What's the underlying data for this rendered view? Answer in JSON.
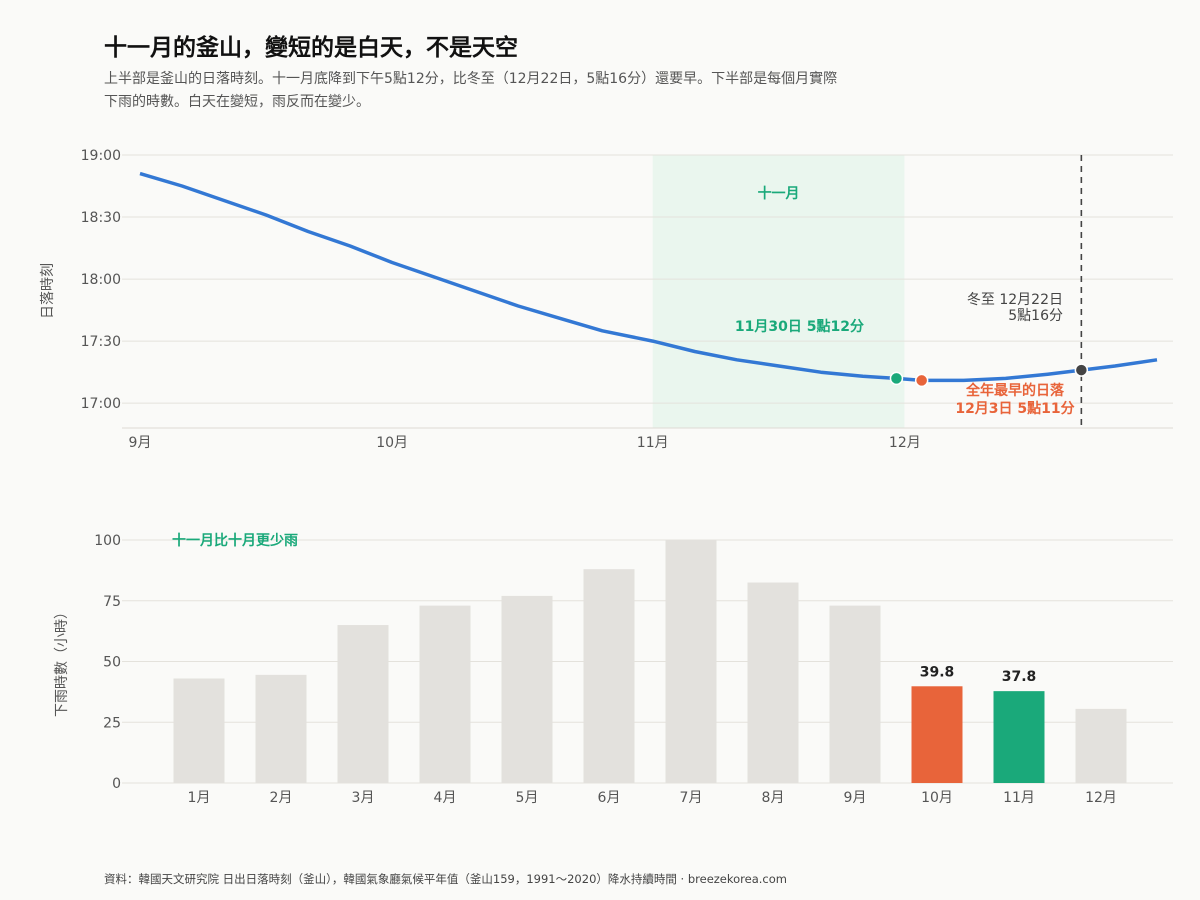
{
  "header": {
    "title": "十一月的釜山，變短的是白天，不是天空",
    "subtitle_lines": [
      "上半部是釜山的日落時刻。十一月底降到下午5點12分，比冬至（12月22日，5點16分）還要早。下半部是每個月實際",
      "下雨的時數。白天在變短，雨反而在變少。"
    ]
  },
  "footer": {
    "source": "資料：韓國天文研究院 日出日落時刻（釜山），韓國氣象廳氣候平年值（釜山159，1991～2020）降水持續時間 · breezekorea.com"
  },
  "colors": {
    "line": "#3378d4",
    "november_shade": "#eaf6ee",
    "november_green": "#1aa97a",
    "october_orange": "#e8643a",
    "solstice_dark": "#444444",
    "bar_grey": "#e3e1dd",
    "grid": "#e4e2dc"
  },
  "chart_data": [
    {
      "type": "line",
      "ylabel": "日落時刻",
      "y_unit": "time of day",
      "ylim": [
        "16:48",
        "19:00"
      ],
      "y_ticks": [
        "17:00",
        "17:30",
        "18:00",
        "18:30",
        "19:00"
      ],
      "x_tick_labels": [
        "9月",
        "10月",
        "11月",
        "12月"
      ],
      "x_range": [
        "09-01",
        "12-31"
      ],
      "grid": true,
      "series": [
        {
          "points": [
            [
              "09-01",
              "18:51"
            ],
            [
              "09-06",
              "18:45"
            ],
            [
              "09-11",
              "18:38"
            ],
            [
              "09-16",
              "18:31"
            ],
            [
              "09-21",
              "18:23"
            ],
            [
              "09-26",
              "18:16"
            ],
            [
              "10-01",
              "18:08"
            ],
            [
              "10-06",
              "18:01"
            ],
            [
              "10-11",
              "17:54"
            ],
            [
              "10-16",
              "17:47"
            ],
            [
              "10-21",
              "17:41"
            ],
            [
              "10-26",
              "17:35"
            ],
            [
              "11-01",
              "17:30"
            ],
            [
              "11-06",
              "17:25"
            ],
            [
              "11-11",
              "17:21"
            ],
            [
              "11-16",
              "17:18"
            ],
            [
              "11-21",
              "17:15"
            ],
            [
              "11-26",
              "17:13"
            ],
            [
              "11-30",
              "17:12"
            ],
            [
              "12-03",
              "17:11"
            ],
            [
              "12-08",
              "17:11"
            ],
            [
              "12-13",
              "17:12"
            ],
            [
              "12-18",
              "17:14"
            ],
            [
              "12-22",
              "17:16"
            ],
            [
              "12-26",
              "17:18"
            ],
            [
              "12-31",
              "17:21"
            ]
          ]
        }
      ],
      "shaded_region": {
        "from": "11-01",
        "to": "11-30",
        "label": "十一月"
      },
      "highlight_points": [
        {
          "key": "nov30",
          "date": "11-30",
          "time": "17:12",
          "label": "11月30日 5點12分"
        },
        {
          "key": "dec3",
          "date": "12-03",
          "time": "17:11",
          "label_lines": [
            "全年最早的日落",
            "12月3日 5點11分"
          ]
        },
        {
          "key": "solstice",
          "date": "12-22",
          "time": "17:16",
          "label_lines": [
            "冬至 12月22日",
            "5點16分"
          ]
        }
      ],
      "reference_line": {
        "date": "12-22",
        "style": "dashed"
      }
    },
    {
      "type": "bar",
      "ylabel": "下雨時數（小時）",
      "ylim": [
        0,
        100
      ],
      "y_ticks": [
        0,
        25,
        50,
        75,
        100
      ],
      "categories": [
        "1月",
        "2月",
        "3月",
        "4月",
        "5月",
        "6月",
        "7月",
        "8月",
        "9月",
        "10月",
        "11月",
        "12月"
      ],
      "values": [
        43,
        44.5,
        65,
        73,
        77,
        88,
        100,
        82.5,
        73,
        39.8,
        37.8,
        30.5
      ],
      "highlighted": {
        "10月": "orange",
        "11月": "green"
      },
      "data_labels": {
        "10月": "39.8",
        "11月": "37.8"
      },
      "annotation": "十一月比十月更少雨",
      "grid": true
    }
  ]
}
